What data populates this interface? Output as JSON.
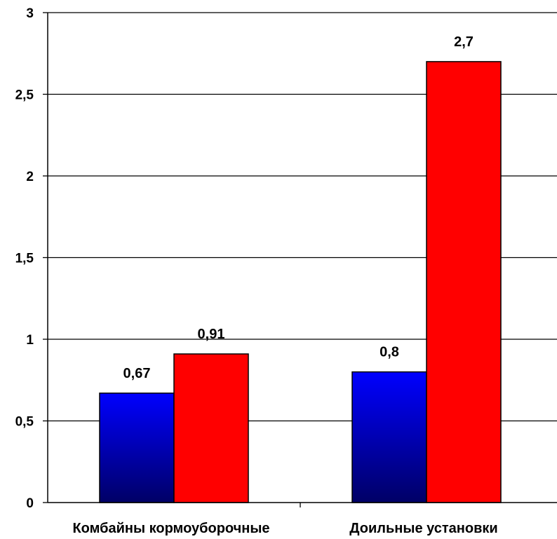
{
  "chart_data": {
    "type": "bar",
    "categories": [
      "Комбайны кормоуборочные",
      "Доильные установки"
    ],
    "series": [
      {
        "values": [
          0.67,
          0.8
        ],
        "labels": [
          "0,67",
          "0,8"
        ],
        "color_top": "#0000ff",
        "color_bottom": "#000066"
      },
      {
        "values": [
          0.91,
          2.7
        ],
        "labels": [
          "0,91",
          "2,7"
        ],
        "color": "#ff0000"
      }
    ],
    "y_ticks": [
      {
        "value": 0,
        "label": "0"
      },
      {
        "value": 0.5,
        "label": "0,5"
      },
      {
        "value": 1,
        "label": "1"
      },
      {
        "value": 1.5,
        "label": "1,5"
      },
      {
        "value": 2,
        "label": "2"
      },
      {
        "value": 2.5,
        "label": "2,5"
      },
      {
        "value": 3,
        "label": "3"
      }
    ],
    "ylim": [
      0,
      3
    ],
    "grid": true,
    "legend": "none",
    "title": "",
    "xlabel": "",
    "ylabel": ""
  }
}
